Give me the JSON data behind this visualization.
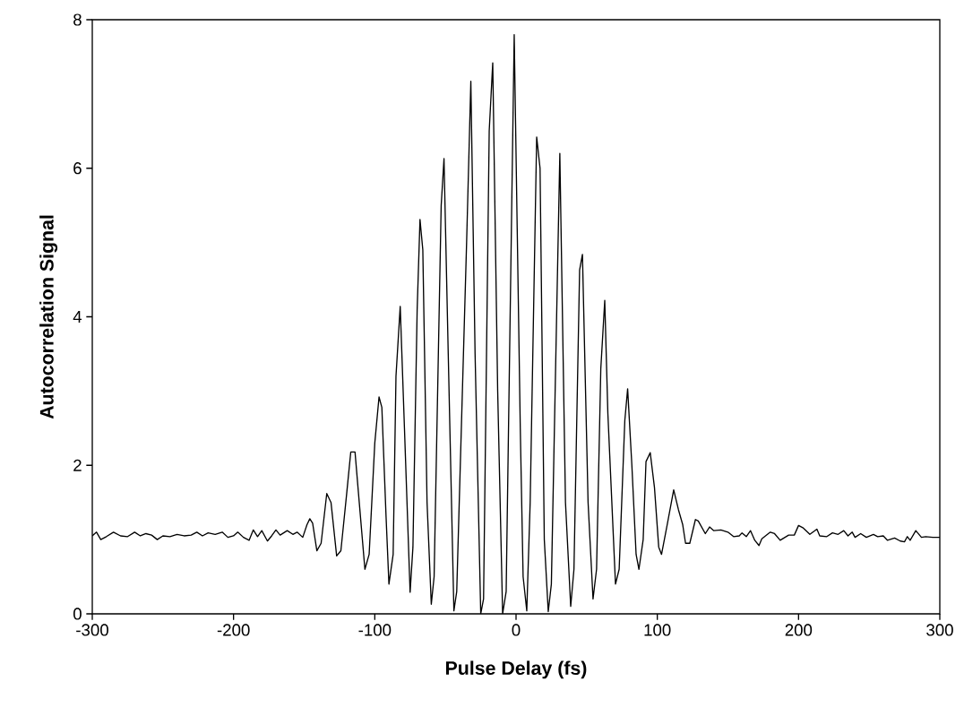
{
  "chart_data": {
    "type": "line",
    "xlabel": "Pulse Delay (fs)",
    "ylabel": "Autocorrelation Signal",
    "xlim": [
      -300,
      300
    ],
    "ylim": [
      0,
      8
    ],
    "xticks": [
      -300,
      -200,
      -100,
      0,
      100,
      200,
      300
    ],
    "yticks": [
      0,
      2,
      4,
      6,
      8
    ],
    "marker": "none",
    "line_style": "solid",
    "series": [
      {
        "color": "#000000",
        "x": [
          -300,
          -297,
          -294,
          -290,
          -285,
          -280,
          -275,
          -270,
          -266,
          -262,
          -258,
          -254,
          -250,
          -245,
          -240,
          -235,
          -230,
          -226,
          -222,
          -218,
          -213,
          -208,
          -204,
          -200,
          -197,
          -193,
          -189,
          -186,
          -183,
          -180,
          -176,
          -173,
          -170,
          -167,
          -162,
          -158,
          -155,
          -151,
          -148,
          -146,
          -144,
          -141,
          -138,
          -134,
          -131,
          -127,
          -124,
          -120,
          -117,
          -114,
          -111,
          -107,
          -104,
          -100,
          -97,
          -95,
          -92,
          -90,
          -87,
          -85,
          -82,
          -79,
          -75,
          -73,
          -70,
          -68,
          -66,
          -63,
          -60,
          -58,
          -53,
          -51,
          -48,
          -44,
          -42,
          -35,
          -32,
          -29,
          -25,
          -23,
          -19,
          -16.5,
          -13,
          -9.5,
          -7,
          -1.3,
          3,
          5,
          7.6,
          10,
          14.6,
          17,
          20,
          22.8,
          25,
          31,
          35,
          38.7,
          41,
          45,
          47,
          51,
          54.5,
          57,
          60,
          62.8,
          65,
          70.4,
          73,
          77,
          79,
          82,
          85,
          87,
          90,
          92,
          95,
          98,
          101,
          103,
          107,
          111.6,
          115,
          118,
          120,
          123,
          127,
          129,
          134,
          137,
          140,
          145,
          150,
          154,
          158,
          160,
          163,
          166,
          169,
          172,
          174,
          180,
          183,
          187,
          193,
          197,
          200,
          203,
          208,
          213,
          215,
          220,
          224,
          228,
          232,
          235,
          238,
          240,
          244,
          248,
          253,
          256,
          260,
          263,
          268,
          272,
          275,
          277,
          279,
          283,
          287,
          290,
          295,
          300
        ],
        "values": [
          1.05,
          1.1,
          1.0,
          1.04,
          1.1,
          1.05,
          1.04,
          1.1,
          1.05,
          1.08,
          1.06,
          1.0,
          1.05,
          1.04,
          1.07,
          1.05,
          1.06,
          1.1,
          1.05,
          1.09,
          1.07,
          1.1,
          1.03,
          1.05,
          1.1,
          1.03,
          0.99,
          1.13,
          1.04,
          1.12,
          0.98,
          1.05,
          1.13,
          1.06,
          1.12,
          1.07,
          1.1,
          1.03,
          1.2,
          1.28,
          1.22,
          0.85,
          0.95,
          1.62,
          1.5,
          0.78,
          0.85,
          1.6,
          2.18,
          2.18,
          1.5,
          0.6,
          0.8,
          2.3,
          2.92,
          2.78,
          1.3,
          0.4,
          0.8,
          3.2,
          4.14,
          2.5,
          0.29,
          0.9,
          4.1,
          5.31,
          4.9,
          1.5,
          0.13,
          0.5,
          5.5,
          6.13,
          3.5,
          0.04,
          0.3,
          5.0,
          7.17,
          3.5,
          0,
          0.2,
          6.5,
          7.42,
          3.0,
          0,
          0.3,
          7.8,
          2.5,
          0.5,
          0.04,
          1.5,
          6.42,
          6.0,
          1.0,
          0.03,
          0.4,
          6.2,
          1.5,
          0.1,
          0.6,
          4.63,
          4.84,
          1.5,
          0.2,
          0.6,
          3.3,
          4.22,
          2.7,
          0.4,
          0.6,
          2.6,
          3.03,
          2.0,
          0.8,
          0.6,
          1.0,
          2.05,
          2.17,
          1.7,
          0.9,
          0.8,
          1.2,
          1.67,
          1.4,
          1.2,
          0.95,
          0.95,
          1.27,
          1.25,
          1.08,
          1.17,
          1.12,
          1.13,
          1.1,
          1.04,
          1.05,
          1.09,
          1.04,
          1.12,
          0.99,
          0.92,
          1.01,
          1.1,
          1.08,
          0.99,
          1.06,
          1.06,
          1.19,
          1.16,
          1.07,
          1.14,
          1.05,
          1.04,
          1.09,
          1.07,
          1.12,
          1.05,
          1.1,
          1.03,
          1.08,
          1.03,
          1.07,
          1.04,
          1.05,
          0.99,
          1.02,
          0.98,
          0.97,
          1.04,
          0.99,
          1.12,
          1.03,
          1.04,
          1.03,
          1.03
        ]
      }
    ]
  }
}
